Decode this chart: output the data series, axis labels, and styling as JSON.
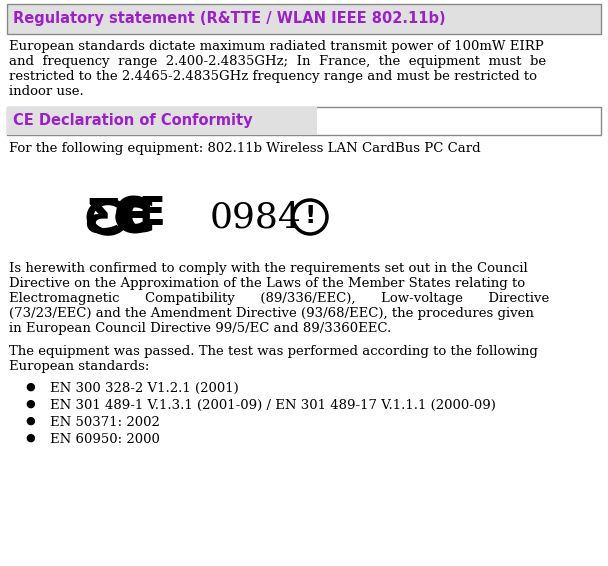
{
  "bg_color": "#ffffff",
  "header1_text": "Regulatory statement (R&TTE / WLAN IEEE 802.11b)",
  "header1_color": "#9b20c8",
  "header1_bg": "#e0e0e0",
  "header2_text": "CE Declaration of Conformity",
  "header2_color": "#9b20c8",
  "header2_bg": "#e0e0e0",
  "para1_lines": [
    "European standards dictate maximum radiated transmit power of 100mW EIRP",
    "and  frequency  range  2.400-2.4835GHz;  In  France,  the  equipment  must  be",
    "restricted to the 2.4465-2.4835GHz frequency range and must be restricted to",
    "indoor use."
  ],
  "para2": "For the following equipment: 802.11b Wireless LAN CardBus PC Card",
  "para3_lines": [
    "Is herewith confirmed to comply with the requirements set out in the Council",
    "Directive on the Approximation of the Laws of the Member States relating to",
    "Electromagnetic      Compatibility      (89/336/EEC),      Low-voltage      Directive",
    "(73/23/EEC) and the Amendment Directive (93/68/EEC), the procedures given",
    "in European Council Directive 99/5/EC and 89/3360EEC."
  ],
  "para4_lines": [
    "The equipment was passed. The test was performed according to the following",
    "European standards:"
  ],
  "bullets": [
    "EN 300 328-2 V1.2.1 (2001)",
    "EN 301 489-1 V.1.3.1 (2001-09) / EN 301 489-17 V.1.1.1 (2000-09)",
    "EN 50371: 2002",
    "EN 60950: 2000"
  ],
  "font_size_header": 10.5,
  "font_size_body": 9.5,
  "font_size_ce": 28,
  "font_size_num": 26,
  "text_color": "#000000"
}
